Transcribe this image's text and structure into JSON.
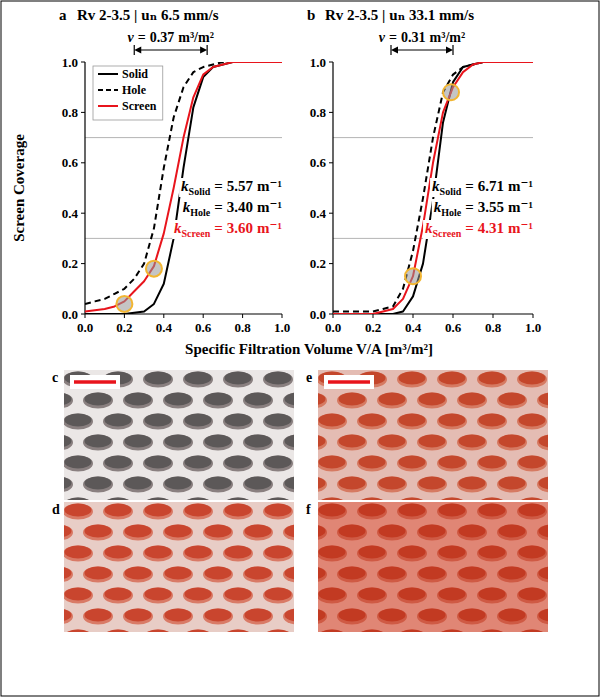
{
  "chart_data": [
    {
      "type": "line",
      "panel": "a",
      "title": "Rv 2-3.5 | uₙ 6.5 mm/s",
      "ylabel": "Screen Coverage",
      "xlabel": "Specific Filtration Volume V/A [m³/m²]",
      "x": [
        0,
        0.05,
        0.1,
        0.15,
        0.2,
        0.25,
        0.3,
        0.35,
        0.4,
        0.45,
        0.5,
        0.55,
        0.6,
        0.65,
        0.7,
        0.75,
        0.8,
        0.85,
        0.9,
        0.95,
        1.0
      ],
      "series": [
        {
          "name": "Solid",
          "color": "#000000",
          "line_style": "solid",
          "values": [
            0,
            0,
            0,
            0,
            0,
            0.005,
            0.01,
            0.04,
            0.12,
            0.3,
            0.58,
            0.82,
            0.94,
            0.98,
            0.99,
            1,
            1,
            1,
            1,
            1,
            1
          ]
        },
        {
          "name": "Hole",
          "color": "#000000",
          "line_style": "dashed",
          "values": [
            0.04,
            0.05,
            0.06,
            0.08,
            0.1,
            0.14,
            0.2,
            0.34,
            0.58,
            0.78,
            0.9,
            0.96,
            0.98,
            0.99,
            1,
            1,
            1,
            1,
            1,
            1,
            1
          ]
        },
        {
          "name": "Screen",
          "color": "#e8141c",
          "line_style": "solid",
          "values": [
            0.01,
            0.015,
            0.02,
            0.03,
            0.05,
            0.09,
            0.13,
            0.19,
            0.32,
            0.5,
            0.7,
            0.86,
            0.95,
            0.98,
            0.99,
            1,
            1,
            1,
            1,
            1,
            1
          ]
        }
      ],
      "xlim": [
        0,
        1
      ],
      "ylim": [
        0,
        1
      ],
      "xticks": [
        {
          "value": 0,
          "label": "0.0"
        },
        0.2,
        0.4,
        0.6,
        0.8,
        {
          "value": 1,
          "label": "1.0"
        }
      ],
      "yticks": [
        {
          "value": 0,
          "label": "0.0"
        },
        0.2,
        0.4,
        0.6,
        0.8,
        {
          "value": 1,
          "label": "1.0"
        }
      ],
      "legend": "upper left",
      "reference_lines": [
        0.3,
        0.7
      ],
      "highlight_points": {
        "x": [
          0.2,
          0.35
        ],
        "y": [
          0.04,
          0.18
        ]
      },
      "v_annotation": {
        "symbol": "v",
        "relation": "=",
        "value": 0.37,
        "unit": "m³/m²",
        "span": [
          0.25,
          0.62
        ]
      },
      "k_annotation": {
        "symbol": "k",
        "relation": "=",
        "unit": "m⁻¹",
        "subscripts": [
          "Solid",
          "Hole",
          "Screen"
        ],
        "values": [
          5.57,
          3.4,
          3.6
        ],
        "value_labels": [
          "5.57",
          "3.40",
          "3.60"
        ]
      }
    },
    {
      "type": "line",
      "panel": "b",
      "title": "Rv 2-3.5 | uₙ 33.1 mm/s",
      "x": [
        0,
        0.05,
        0.1,
        0.15,
        0.2,
        0.25,
        0.3,
        0.35,
        0.4,
        0.45,
        0.5,
        0.55,
        0.6,
        0.65,
        0.7,
        0.75,
        0.8,
        0.85,
        0.9,
        0.95,
        1.0
      ],
      "series": [
        {
          "name": "Solid",
          "color": "#000000",
          "line_style": "solid",
          "values": [
            0,
            0,
            0,
            0,
            0,
            0,
            0,
            0.01,
            0.07,
            0.2,
            0.45,
            0.76,
            0.92,
            0.98,
            0.99,
            1,
            1,
            1,
            1,
            1,
            1
          ]
        },
        {
          "name": "Hole",
          "color": "#000000",
          "line_style": "dashed",
          "values": [
            0.01,
            0.01,
            0.01,
            0.01,
            0.01,
            0.02,
            0.03,
            0.1,
            0.25,
            0.46,
            0.7,
            0.88,
            0.95,
            0.98,
            0.99,
            1,
            1,
            1,
            1,
            1,
            1
          ]
        },
        {
          "name": "Screen",
          "color": "#e8141c",
          "line_style": "solid",
          "values": [
            0,
            0,
            0,
            0,
            0,
            0.01,
            0.02,
            0.06,
            0.15,
            0.35,
            0.6,
            0.8,
            0.9,
            0.96,
            0.99,
            1,
            1,
            1,
            1,
            1,
            1
          ]
        }
      ],
      "xlim": [
        0,
        1
      ],
      "ylim": [
        0,
        1
      ],
      "xticks": [
        {
          "value": 0,
          "label": "0.0"
        },
        0.2,
        0.4,
        0.6,
        0.8,
        {
          "value": 1,
          "label": "1.0"
        }
      ],
      "yticks": [
        {
          "value": 0,
          "label": "0.0"
        },
        0.2,
        0.4,
        0.6,
        0.8,
        {
          "value": 1,
          "label": "1.0"
        }
      ],
      "reference_lines": [
        0.3,
        0.7
      ],
      "highlight_points": {
        "x": [
          0.4,
          0.59
        ],
        "y": [
          0.15,
          0.88
        ]
      },
      "v_annotation": {
        "symbol": "v",
        "relation": "=",
        "value": 0.31,
        "unit": "m³/m²",
        "span": [
          0.29,
          0.6
        ]
      },
      "k_annotation": {
        "symbol": "k",
        "relation": "=",
        "unit": "m⁻¹",
        "subscripts": [
          "Solid",
          "Hole",
          "Screen"
        ],
        "values": [
          6.71,
          3.55,
          4.31
        ],
        "value_labels": [
          "6.71",
          "3.55",
          "4.31"
        ]
      }
    }
  ],
  "photos": [
    {
      "panel": "c"
    },
    {
      "panel": "d"
    },
    {
      "panel": "e"
    },
    {
      "panel": "f"
    }
  ]
}
